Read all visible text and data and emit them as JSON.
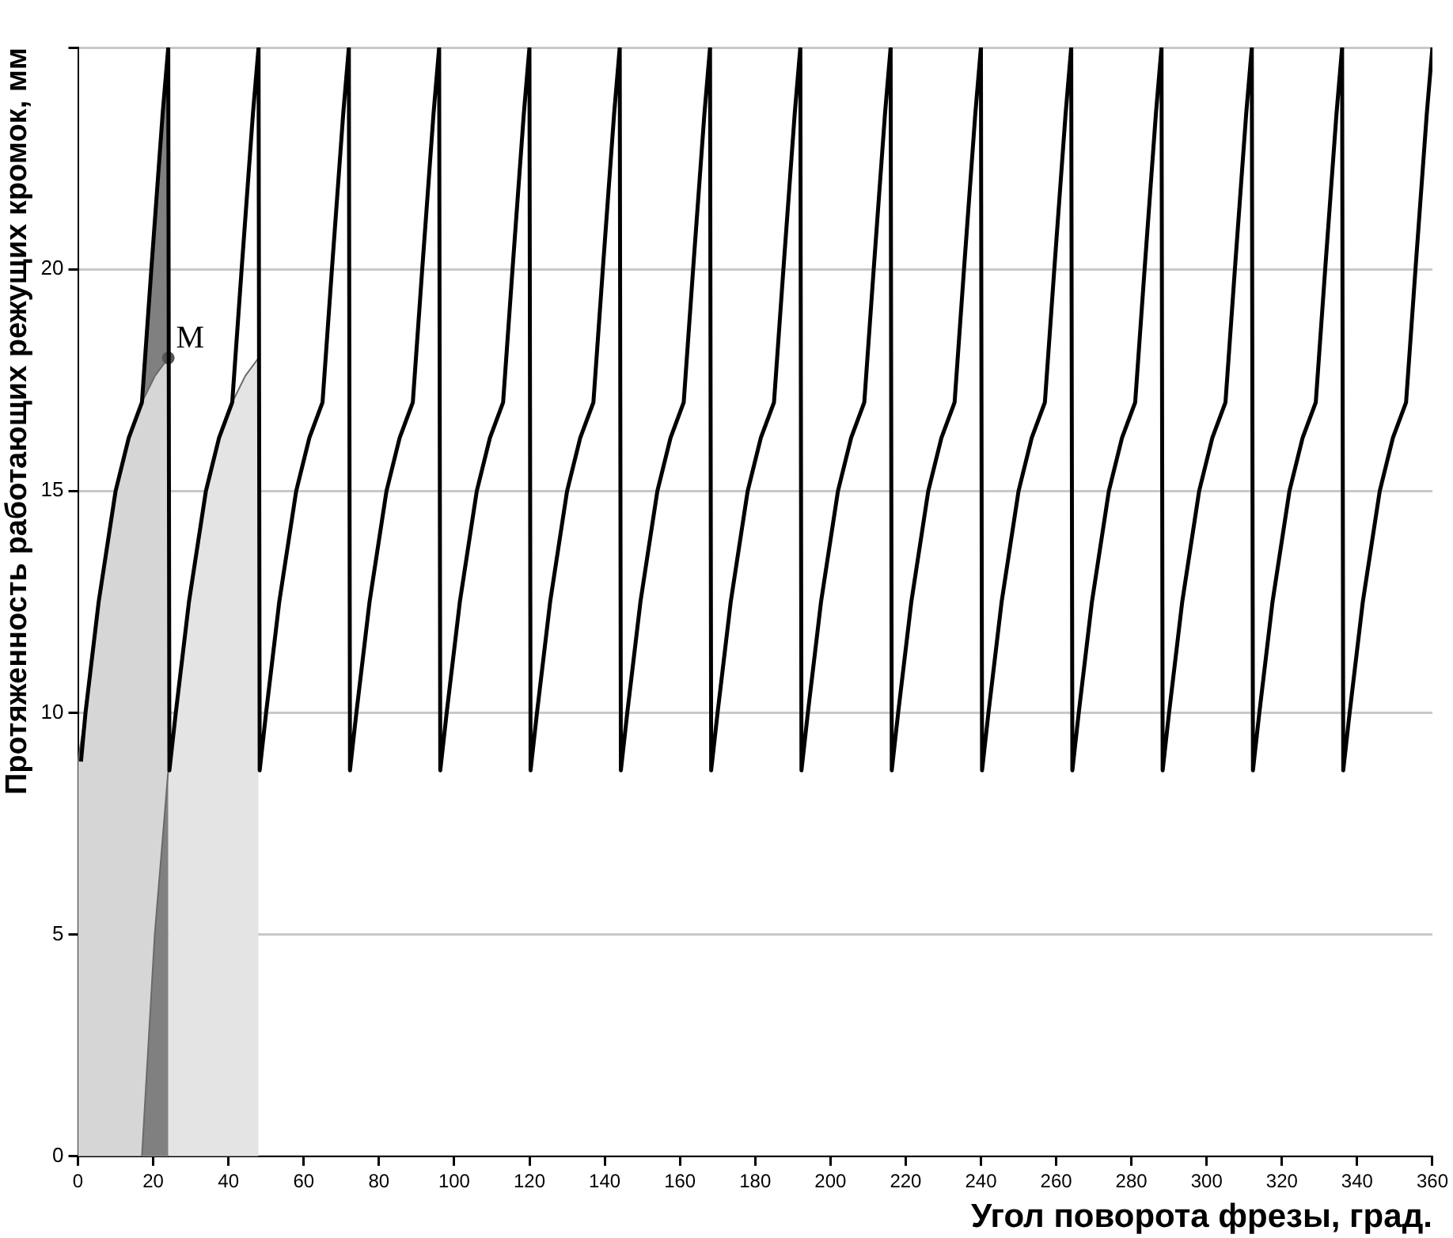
{
  "chart_data": {
    "type": "line",
    "xlabel": "Угол поворота фрезы, град.",
    "ylabel": "Протяженность работающих режущих кромок, мм",
    "xlim": [
      0,
      360
    ],
    "xticks": [
      0,
      20,
      40,
      60,
      80,
      100,
      120,
      140,
      160,
      180,
      200,
      220,
      240,
      260,
      280,
      300,
      320,
      340,
      360
    ],
    "ylim": [
      0,
      25
    ],
    "yticks": [
      0,
      5,
      10,
      15,
      20,
      {
        "value": 25,
        "label": null
      }
    ],
    "grid": "y",
    "legend": false,
    "marker": "none",
    "line_style": "solid",
    "annotations": [
      {
        "text": "M",
        "x": 24,
        "y": 18
      }
    ],
    "series": [
      {
        "type": "line",
        "color": "#000000",
        "x": [
          0.8,
          2,
          5.5,
          10,
          13.5,
          17,
          19.5,
          22.5,
          24,
          24.3,
          26,
          29.5,
          34,
          37.5,
          41,
          43.5,
          46.5,
          48,
          48.3,
          50,
          53.5,
          58,
          61.5,
          65,
          67.5,
          70.5,
          72,
          72.3,
          74,
          77.5,
          82,
          85.5,
          89,
          91.5,
          94.5,
          96,
          96.3,
          98,
          101.5,
          106,
          109.5,
          113,
          115.5,
          118.5,
          120,
          120.3,
          122,
          125.5,
          130,
          133.5,
          137,
          139.5,
          142.5,
          144,
          144.3,
          146,
          149.5,
          154,
          157.5,
          161,
          163.5,
          166.5,
          168,
          168.3,
          170,
          173.5,
          178,
          181.5,
          185,
          187.5,
          190.5,
          192,
          192.3,
          194,
          197.5,
          202,
          205.5,
          209,
          211.5,
          214.5,
          216,
          216.3,
          218,
          221.5,
          226,
          229.5,
          233,
          235.5,
          238.5,
          240,
          240.3,
          242,
          245.5,
          250,
          253.5,
          257,
          259.5,
          262.5,
          264,
          264.3,
          266,
          269.5,
          274,
          277.5,
          281,
          283.5,
          286.5,
          288,
          288.3,
          290,
          293.5,
          298,
          301.5,
          305,
          307.5,
          310.5,
          312,
          312.3,
          314,
          317.5,
          322,
          325.5,
          329,
          331.5,
          334.5,
          336,
          336.3,
          338,
          341.5,
          346,
          349.5,
          353,
          355.5,
          358.5,
          360
        ],
        "values": [
          8.9,
          10,
          12.5,
          15,
          16.2,
          17,
          20,
          23.5,
          25,
          8.7,
          10,
          12.5,
          15,
          16.2,
          17,
          20,
          23.5,
          25,
          8.7,
          10,
          12.5,
          15,
          16.2,
          17,
          20,
          23.5,
          25,
          8.7,
          10,
          12.5,
          15,
          16.2,
          17,
          20,
          23.5,
          25,
          8.7,
          10,
          12.5,
          15,
          16.2,
          17,
          20,
          23.5,
          25,
          8.7,
          10,
          12.5,
          15,
          16.2,
          17,
          20,
          23.5,
          25,
          8.7,
          10,
          12.5,
          15,
          16.2,
          17,
          20,
          23.5,
          25,
          8.7,
          10,
          12.5,
          15,
          16.2,
          17,
          20,
          23.5,
          25,
          8.7,
          10,
          12.5,
          15,
          16.2,
          17,
          20,
          23.5,
          25,
          8.7,
          10,
          12.5,
          15,
          16.2,
          17,
          20,
          23.5,
          25,
          8.7,
          10,
          12.5,
          15,
          16.2,
          17,
          20,
          23.5,
          25,
          8.7,
          10,
          12.5,
          15,
          16.2,
          17,
          20,
          23.5,
          25,
          8.7,
          10,
          12.5,
          15,
          16.2,
          17,
          20,
          23.5,
          25,
          8.7,
          10,
          12.5,
          15,
          16.2,
          17,
          20,
          23.5,
          25,
          8.7,
          10,
          12.5,
          15,
          16.2,
          17,
          20,
          23.5,
          25
        ]
      },
      {
        "type": "scatter",
        "color": "#555555",
        "marker": "circle",
        "x": [
          24
        ],
        "values": [
          18
        ]
      },
      {
        "type": "area",
        "color": "#808080",
        "x": [
          17,
          20.4,
          24
        ],
        "values": [
          0,
          5,
          8.7
        ]
      },
      {
        "type": "area",
        "color": "#e4e4e4",
        "x": [
          24,
          24.3,
          26,
          29.5,
          34,
          37.5,
          41,
          44.5,
          48
        ],
        "values": [
          8.7,
          8.7,
          10,
          12.5,
          15,
          16.2,
          17,
          17.6,
          18
        ]
      },
      {
        "type": "area",
        "color": "#d6d6d6",
        "x": [
          0,
          2,
          5.5,
          10,
          13.5,
          17,
          20.5,
          24
        ],
        "values": [
          8.9,
          10,
          12.5,
          15,
          16.2,
          17,
          17.6,
          18
        ]
      },
      {
        "type": "area",
        "color": "#808080",
        "x": [
          17,
          19.5,
          22.5,
          24
        ],
        "values": [
          17,
          20,
          23.5,
          25
        ]
      }
    ]
  }
}
